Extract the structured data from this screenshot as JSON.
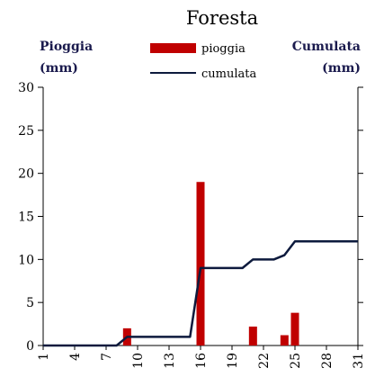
{
  "colors": {
    "bar": "#c00000",
    "line": "#0d1a3d",
    "axis": "#000000",
    "text": "#000000"
  },
  "chart_data": {
    "type": "bar",
    "title": "Foresta",
    "ylabel_left": [
      "Pioggia",
      "(mm)"
    ],
    "ylabel_right": [
      "Cumulata",
      "(mm)"
    ],
    "ylim": [
      0,
      30
    ],
    "y_ticks": [
      0,
      5,
      10,
      15,
      20,
      25,
      30
    ],
    "x_range": [
      1,
      31
    ],
    "x_ticks": [
      1,
      4,
      7,
      10,
      13,
      16,
      19,
      22,
      25,
      28,
      31
    ],
    "grid": false,
    "legend_position": "top-center",
    "series": [
      {
        "name": "pioggia",
        "type": "bar",
        "x": [
          9,
          16,
          21,
          24,
          25
        ],
        "values": [
          2.0,
          19.0,
          2.2,
          1.2,
          3.8
        ]
      },
      {
        "name": "cumulata",
        "type": "line",
        "x": [
          1,
          8,
          9,
          15,
          16,
          20,
          21,
          23,
          24,
          25,
          31
        ],
        "values": [
          0,
          0,
          1.0,
          1.0,
          9.0,
          9.0,
          10.0,
          10.0,
          10.5,
          12.1,
          12.1
        ]
      }
    ]
  }
}
